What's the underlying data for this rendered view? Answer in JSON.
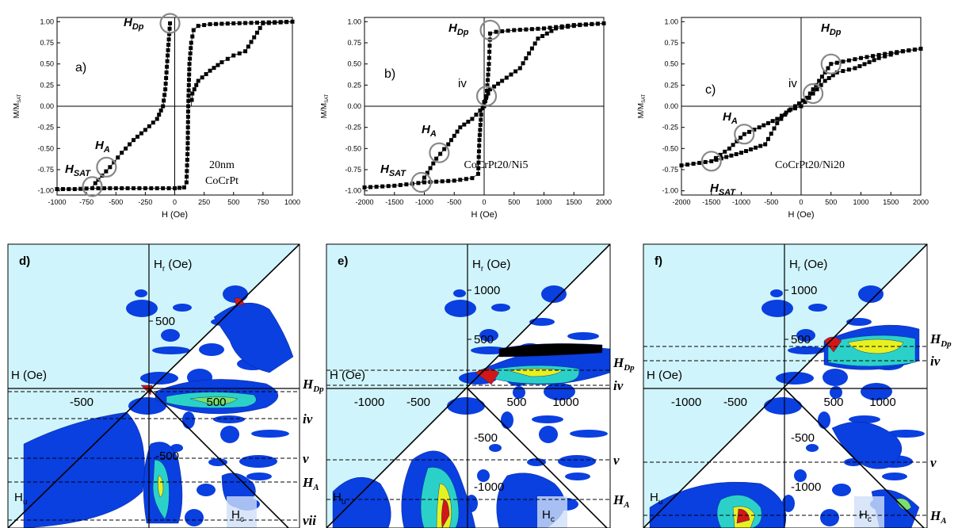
{
  "loops": [
    {
      "id": "a",
      "label": "a)",
      "sample": [
        "20nm",
        "CoCrPt"
      ],
      "xlabel": "H (Oe)",
      "ylabel": "M/M",
      "ylabel_sub": "SAT",
      "xticks": [
        "-1000",
        "-750",
        "-500",
        "-250",
        "0",
        "250",
        "500",
        "750",
        "1000"
      ],
      "yticks": [
        "1.00",
        "0.75",
        "0.50",
        "0.25",
        "0.00",
        "-0.25",
        "-0.50",
        "-0.75",
        "-1.00"
      ],
      "xlim": [
        -1000,
        1000
      ],
      "ylim": [
        -1.05,
        1.05
      ],
      "annotations": {
        "HDp": "H",
        "HDp_sub": "Dp",
        "HA": "H",
        "HA_sub": "A",
        "HSAT": "H",
        "HSAT_sub": "SAT"
      },
      "circles": [
        [
          -40,
          0.98
        ],
        [
          -580,
          -0.72
        ],
        [
          -700,
          -0.95
        ]
      ],
      "chart_data": {
        "type": "scatter",
        "series": [
          {
            "values": [
              [
                -1000,
                -0.98
              ],
              [
                -850,
                -0.98
              ],
              [
                -700,
                -0.97
              ],
              [
                -500,
                -0.97
              ],
              [
                -300,
                -0.97
              ],
              [
                -100,
                -0.97
              ],
              [
                0,
                -0.97
              ],
              [
                80,
                -0.96
              ],
              [
                100,
                -0.9
              ],
              [
                110,
                -0.5
              ],
              [
                115,
                0
              ],
              [
                125,
                0.5
              ],
              [
                140,
                0.75
              ],
              [
                160,
                0.9
              ],
              [
                200,
                0.95
              ],
              [
                300,
                0.97
              ],
              [
                500,
                0.98
              ],
              [
                750,
                0.99
              ],
              [
                1000,
                1.0
              ]
            ]
          },
          {
            "values": [
              [
                1000,
                1.0
              ],
              [
                750,
                0.98
              ],
              [
                600,
                0.65
              ],
              [
                500,
                0.6
              ],
              [
                400,
                0.52
              ],
              [
                300,
                0.42
              ],
              [
                200,
                0.3
              ],
              [
                150,
                0.15
              ],
              [
                140,
                0.0
              ]
            ]
          },
          {
            "values": [
              [
                -40,
                0.98
              ],
              [
                -60,
                0.6
              ],
              [
                -80,
                0.2
              ],
              [
                -100,
                0.0
              ],
              [
                -150,
                -0.15
              ],
              [
                -250,
                -0.28
              ],
              [
                -350,
                -0.4
              ],
              [
                -450,
                -0.55
              ],
              [
                -550,
                -0.72
              ],
              [
                -650,
                -0.87
              ],
              [
                -700,
                -0.95
              ]
            ]
          }
        ]
      }
    },
    {
      "id": "b",
      "label": "b)",
      "sample": [
        "CoCrPt20/Ni5"
      ],
      "xlabel": "H (Oe)",
      "ylabel": "M/M",
      "ylabel_sub": "SAT",
      "xticks": [
        "-2000",
        "-1500",
        "-1000",
        "-500",
        "0",
        "500",
        "1000",
        "1500",
        "2000"
      ],
      "yticks": [
        "1.00",
        "0.75",
        "0.50",
        "0.25",
        "0.00",
        "-0.25",
        "-0.50",
        "-0.75",
        "-1.00"
      ],
      "xlim": [
        -2000,
        2000
      ],
      "ylim": [
        -1.05,
        1.05
      ],
      "annotations": {
        "HDp": "H",
        "HDp_sub": "Dp",
        "HA": "H",
        "HA_sub": "A",
        "HSAT": "H",
        "HSAT_sub": "SAT",
        "iv": "iv"
      },
      "circles": [
        [
          100,
          0.9
        ],
        [
          40,
          0.12
        ],
        [
          -750,
          -0.55
        ],
        [
          -1050,
          -0.9
        ]
      ],
      "chart_data": {
        "type": "scatter",
        "series": [
          {
            "values": [
              [
                -2000,
                -0.96
              ],
              [
                -1500,
                -0.94
              ],
              [
                -1000,
                -0.9
              ],
              [
                -500,
                -0.88
              ],
              [
                -200,
                -0.85
              ],
              [
                -100,
                -0.8
              ],
              [
                -80,
                -0.4
              ],
              [
                -50,
                -0.1
              ],
              [
                0,
                0.05
              ],
              [
                100,
                0.2
              ],
              [
                300,
                0.3
              ],
              [
                600,
                0.45
              ],
              [
                900,
                0.8
              ],
              [
                1200,
                0.92
              ],
              [
                1600,
                0.96
              ],
              [
                2000,
                0.98
              ]
            ]
          },
          {
            "values": [
              [
                2000,
                0.98
              ],
              [
                1500,
                0.96
              ],
              [
                1000,
                0.92
              ],
              [
                500,
                0.9
              ],
              [
                200,
                0.88
              ],
              [
                100,
                0.86
              ],
              [
                80,
                0.5
              ],
              [
                40,
                0.12
              ],
              [
                0,
                0.0
              ],
              [
                -200,
                -0.15
              ],
              [
                -400,
                -0.25
              ],
              [
                -600,
                -0.45
              ],
              [
                -800,
                -0.62
              ],
              [
                -1050,
                -0.9
              ]
            ]
          }
        ]
      }
    },
    {
      "id": "c",
      "label": "c)",
      "sample": [
        "CoCrPt20/Ni20"
      ],
      "xlabel": "H (Oe)",
      "ylabel": "M/M",
      "ylabel_sub": "SAT",
      "xticks": [
        "-2000",
        "-1500",
        "-1000",
        "-500",
        "0",
        "500",
        "1000",
        "1500",
        "2000"
      ],
      "yticks": [
        "1.00",
        "0.75",
        "0.50",
        "0.25",
        "0.00",
        "-0.25",
        "-0.50",
        "-0.75",
        "-1.00"
      ],
      "xlim": [
        -2000,
        2000
      ],
      "ylim": [
        -1.05,
        1.05
      ],
      "annotations": {
        "HDp": "H",
        "HDp_sub": "Dp",
        "HA": "H",
        "HA_sub": "A",
        "HSAT": "H",
        "HSAT_sub": "SAT",
        "iv": "iv"
      },
      "circles": [
        [
          500,
          0.5
        ],
        [
          200,
          0.15
        ],
        [
          -950,
          -0.33
        ],
        [
          -1500,
          -0.65
        ]
      ],
      "chart_data": {
        "type": "scatter",
        "series": [
          {
            "values": [
              [
                -2000,
                -0.7
              ],
              [
                -1500,
                -0.65
              ],
              [
                -1000,
                -0.55
              ],
              [
                -600,
                -0.45
              ],
              [
                -400,
                -0.2
              ],
              [
                -200,
                -0.05
              ],
              [
                0,
                0.0
              ],
              [
                200,
                0.15
              ],
              [
                400,
                0.3
              ],
              [
                600,
                0.4
              ],
              [
                900,
                0.45
              ],
              [
                1300,
                0.57
              ],
              [
                1700,
                0.65
              ],
              [
                2000,
                0.68
              ]
            ]
          },
          {
            "values": [
              [
                2000,
                0.68
              ],
              [
                1500,
                0.63
              ],
              [
                1000,
                0.57
              ],
              [
                500,
                0.5
              ],
              [
                300,
                0.3
              ],
              [
                100,
                0.1
              ],
              [
                -100,
                0.0
              ],
              [
                -400,
                -0.15
              ],
              [
                -700,
                -0.25
              ],
              [
                -950,
                -0.33
              ],
              [
                -1200,
                -0.5
              ],
              [
                -1500,
                -0.65
              ]
            ]
          }
        ]
      }
    }
  ],
  "forc": [
    {
      "id": "d",
      "label": "d)",
      "hr_axis": "H",
      "hr_sub": "r",
      "hr_unit": " (Oe)",
      "h_axis": "H (Oe)",
      "hu": "H",
      "hu_sub": "u",
      "hc": "H",
      "hc_sub": "c",
      "ticks_top": [
        "500"
      ],
      "ticks_left": [
        "-500"
      ],
      "ticks_right": [
        "500"
      ],
      "ticks_down": [
        "-500"
      ],
      "ref_lines": [
        {
          "name": "H",
          "sub": "Dp"
        },
        {
          "name": "iv",
          "sub": ""
        },
        {
          "name": "v",
          "sub": ""
        },
        {
          "name": "H",
          "sub": "A"
        },
        {
          "name": "vii",
          "sub": ""
        }
      ]
    },
    {
      "id": "e",
      "label": "e)",
      "hr_axis": "H",
      "hr_sub": "r",
      "hr_unit": " (Oe)",
      "h_axis": "H (Oe)",
      "hu": "H",
      "hu_sub": "u",
      "hc": "H",
      "hc_sub": "c",
      "ticks_top": [
        "1000",
        "500"
      ],
      "ticks_left": [
        "-1000",
        "-500"
      ],
      "ticks_right": [
        "500",
        "1000"
      ],
      "ticks_down": [
        "-500",
        "-1000"
      ],
      "ref_lines": [
        {
          "name": "H",
          "sub": "Dp"
        },
        {
          "name": "iv",
          "sub": ""
        },
        {
          "name": "v",
          "sub": ""
        },
        {
          "name": "H",
          "sub": "A"
        }
      ]
    },
    {
      "id": "f",
      "label": "f)",
      "hr_axis": "H",
      "hr_sub": "r",
      "hr_unit": " (Oe)",
      "h_axis": "H (Oe)",
      "hu": "H",
      "hu_sub": "u",
      "hc": "H",
      "hc_sub": "c",
      "ticks_top": [
        "1000",
        "500"
      ],
      "ticks_left": [
        "-1000",
        "-500"
      ],
      "ticks_right": [
        "500",
        "1000"
      ],
      "ticks_down": [
        "-500",
        "-1000"
      ],
      "ref_lines": [
        {
          "name": "H",
          "sub": "Dp"
        },
        {
          "name": "iv",
          "sub": ""
        },
        {
          "name": "v",
          "sub": ""
        },
        {
          "name": "H",
          "sub": "A"
        }
      ]
    }
  ],
  "colors": {
    "forc_bg": "#d0f4fb",
    "forc_blue": "#0a3fe0",
    "marker": "#000000",
    "circle": "#888888"
  }
}
